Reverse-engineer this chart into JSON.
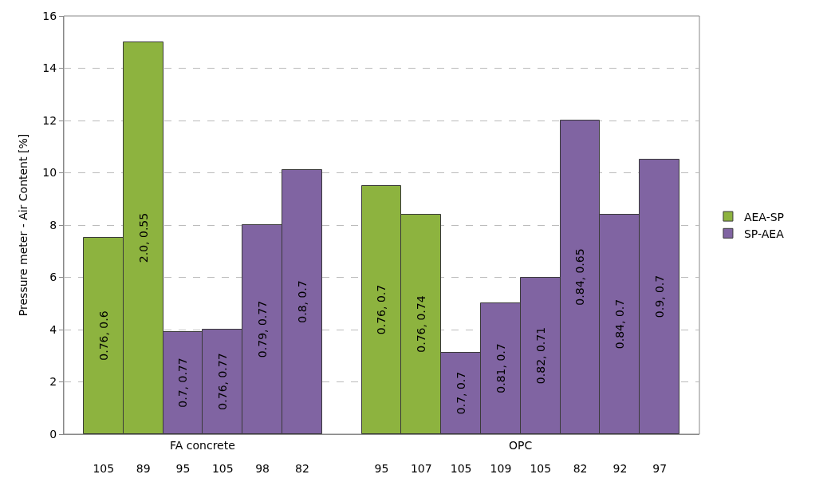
{
  "chart_data": {
    "type": "bar",
    "ylabel": "Pressure meter - Air Content [%]",
    "categories": [
      "105",
      "89",
      "95",
      "105",
      "98",
      "82",
      null,
      "95",
      "107",
      "105",
      "109",
      "105",
      "82",
      "92",
      "97"
    ],
    "series": [
      {
        "name": "AEA-SP",
        "color": "#8db33f",
        "values": [
          7.5,
          15.0,
          null,
          null,
          null,
          null,
          null,
          9.5,
          8.4,
          null,
          null,
          null,
          null,
          null,
          null
        ]
      },
      {
        "name": "SP-AEA",
        "color": "#8064a2",
        "values": [
          null,
          null,
          3.9,
          4.0,
          8.0,
          10.1,
          null,
          null,
          null,
          3.1,
          5.0,
          6.0,
          12.0,
          8.4,
          10.5
        ]
      }
    ],
    "annotations": [
      "0.76, 0.6",
      "2.0, 0.55",
      "0.7, 0.77",
      "0.76, 0.77",
      "0.79, 0.77",
      "0.8, 0.7",
      "0.76, 0.7",
      "0.76, 0.74",
      "0.7, 0.7",
      "0.81, 0.7",
      "0.82, 0.71",
      "0.84, 0.65",
      "0.84, 0.7",
      "0.9, 0.7",
      "FA concrete",
      "OPC"
    ],
    "ylim": [
      0,
      16
    ],
    "yticks": [
      0,
      2,
      4,
      6,
      8,
      10,
      12,
      14,
      16
    ],
    "grid": "y",
    "legend": "right"
  }
}
